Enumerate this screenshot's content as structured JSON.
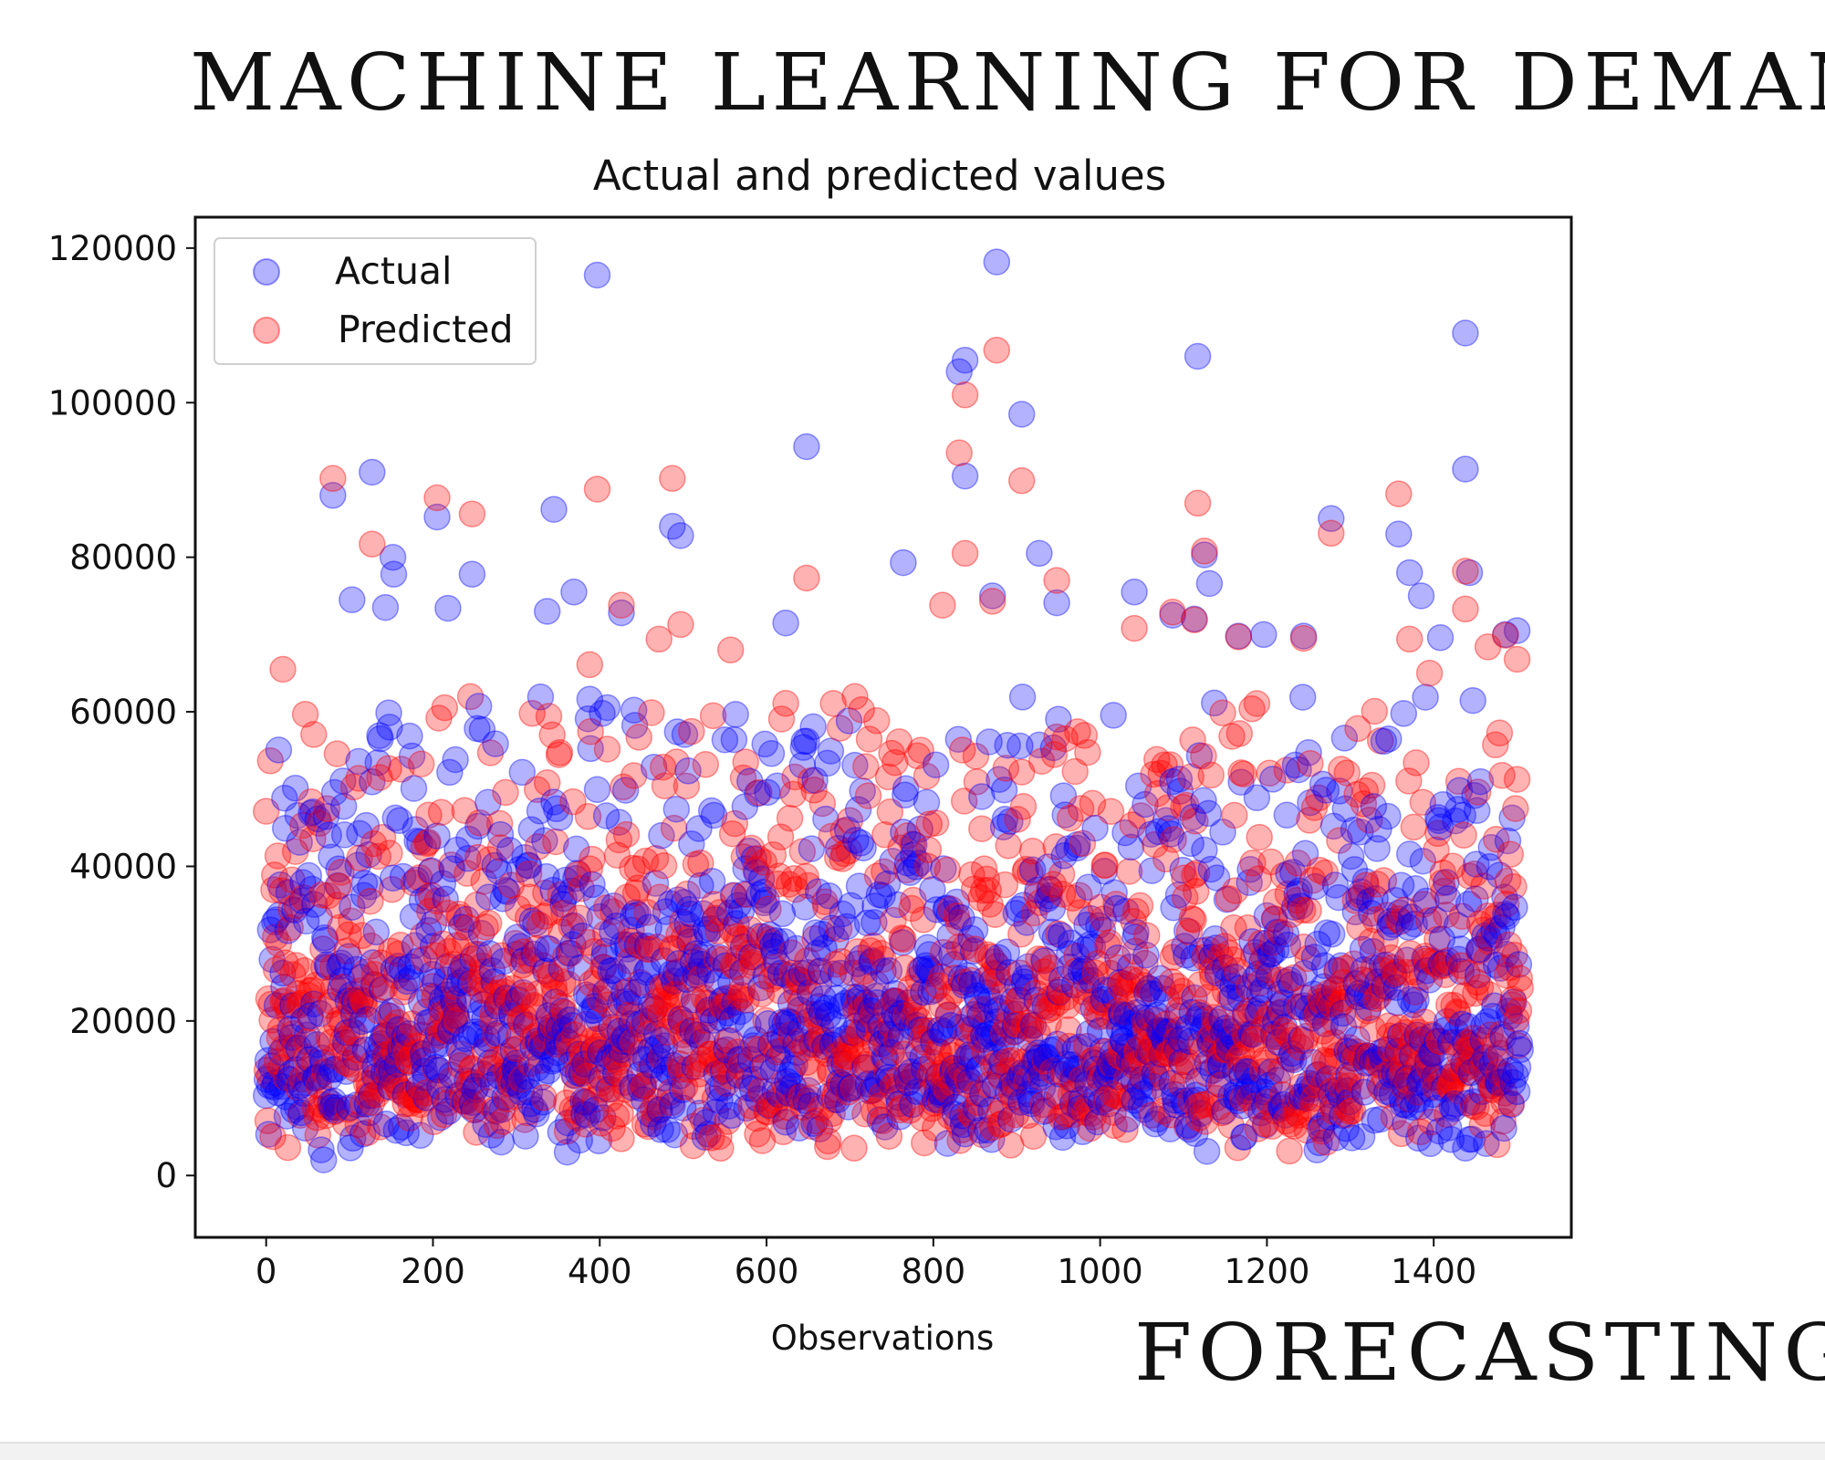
{
  "headline": {
    "top": "MACHINE LEARNING FOR DEMAND",
    "bottom": "FORECASTING"
  },
  "chart_data": {
    "type": "scatter",
    "title": "Actual and predicted values",
    "xlabel": "Observations",
    "ylabel": "",
    "xlim": [
      -85,
      1565
    ],
    "ylim": [
      -8000,
      124000
    ],
    "xticks": [
      0,
      200,
      400,
      600,
      800,
      1000,
      1200,
      1400
    ],
    "yticks": [
      0,
      20000,
      40000,
      60000,
      80000,
      100000,
      120000
    ],
    "grid": false,
    "legend_position": "upper-left",
    "series": [
      {
        "name": "Actual",
        "color": "#0000ff",
        "alpha": 0.3,
        "outliers": [
          [
            397,
            116500
          ],
          [
            876,
            118200
          ],
          [
            1438,
            109000
          ],
          [
            1117,
            106000
          ],
          [
            838,
            105500
          ],
          [
            831,
            104000
          ],
          [
            906,
            98500
          ],
          [
            648,
            94300
          ],
          [
            838,
            90500
          ],
          [
            1438,
            91400
          ],
          [
            127,
            91000
          ],
          [
            80,
            88000
          ],
          [
            345,
            86200
          ],
          [
            205,
            85200
          ],
          [
            1277,
            85000
          ],
          [
            487,
            84000
          ],
          [
            1358,
            83000
          ],
          [
            497,
            82800
          ],
          [
            927,
            80500
          ],
          [
            1125,
            80300
          ],
          [
            152,
            80000
          ],
          [
            764,
            79300
          ],
          [
            153,
            77800
          ],
          [
            247,
            77800
          ],
          [
            1371,
            78000
          ],
          [
            1131,
            76600
          ],
          [
            369,
            75500
          ],
          [
            1443,
            78000
          ],
          [
            1385,
            75000
          ],
          [
            948,
            74100
          ],
          [
            871,
            75000
          ],
          [
            103,
            74500
          ],
          [
            143,
            73500
          ],
          [
            218,
            73400
          ],
          [
            337,
            73000
          ],
          [
            426,
            72800
          ],
          [
            623,
            71500
          ],
          [
            1041,
            75500
          ],
          [
            1500,
            70500
          ],
          [
            1486,
            70000
          ],
          [
            1113,
            72000
          ],
          [
            1087,
            72500
          ],
          [
            1244,
            69800
          ],
          [
            1196,
            70000
          ],
          [
            1166,
            69800
          ],
          [
            1408,
            69600
          ]
        ],
        "seed": 11,
        "count": 1505,
        "distribution": "lognormal-demand"
      },
      {
        "name": "Predicted",
        "color": "#ff0000",
        "alpha": 0.3,
        "outliers": [
          [
            876,
            106800
          ],
          [
            838,
            101000
          ],
          [
            831,
            93500
          ],
          [
            906,
            89900
          ],
          [
            80,
            90200
          ],
          [
            397,
            88800
          ],
          [
            487,
            90200
          ],
          [
            1117,
            87000
          ],
          [
            205,
            87700
          ],
          [
            247,
            85600
          ],
          [
            1277,
            83100
          ],
          [
            1358,
            88200
          ],
          [
            127,
            81700
          ],
          [
            1125,
            80800
          ],
          [
            838,
            80500
          ],
          [
            1438,
            78200
          ],
          [
            648,
            77300
          ],
          [
            948,
            77000
          ],
          [
            811,
            73800
          ],
          [
            426,
            73800
          ],
          [
            871,
            74300
          ],
          [
            1438,
            73300
          ],
          [
            1087,
            72900
          ],
          [
            1113,
            71900
          ],
          [
            497,
            71300
          ],
          [
            1041,
            70800
          ],
          [
            1486,
            69900
          ],
          [
            1166,
            69700
          ],
          [
            1371,
            69400
          ],
          [
            471,
            69400
          ],
          [
            1500,
            66800
          ],
          [
            20,
            65500
          ],
          [
            1395,
            65000
          ],
          [
            557,
            68000
          ],
          [
            388,
            66100
          ],
          [
            1244,
            69500
          ],
          [
            1465,
            68400
          ]
        ],
        "seed": 23,
        "count": 1505,
        "distribution": "lognormal-demand"
      }
    ]
  }
}
